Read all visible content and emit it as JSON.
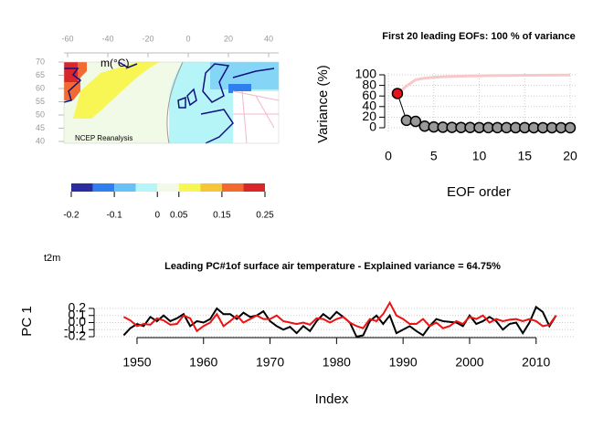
{
  "chart_data": [
    {
      "type": "map",
      "subtitle": "m(°C)",
      "annotation": "NCEP Reanalysis",
      "variable": "t2m",
      "xticks": [
        -60,
        -40,
        -20,
        0,
        20,
        40
      ],
      "yticks": [
        40,
        45,
        50,
        55,
        60,
        65,
        70
      ],
      "xlim": [
        -60,
        40
      ],
      "ylim": [
        40,
        70
      ],
      "colorbar": {
        "breaks": [
          -0.2,
          -0.15,
          -0.1,
          -0.05,
          0,
          0.05,
          0.1,
          0.15,
          0.2,
          0.25
        ],
        "colors": [
          "#2b2ca0",
          "#2f80ee",
          "#66c2f5",
          "#b5f5f8",
          "#f0fae6",
          "#f8f655",
          "#f6c636",
          "#f26a2f",
          "#d8262a"
        ],
        "ticks": [
          -0.2,
          -0.1,
          0,
          0.05,
          0.15,
          0.25
        ]
      }
    },
    {
      "type": "scatter",
      "title": "First 20 leading EOFs:  100 % of variance",
      "xlabel": "EOF order",
      "ylabel": "Variance (%)",
      "x": [
        1,
        2,
        3,
        4,
        5,
        6,
        7,
        8,
        9,
        10,
        11,
        12,
        13,
        14,
        15,
        16,
        17,
        18,
        19,
        20
      ],
      "series": [
        {
          "color": "#999999",
          "highlight": "#e8141c",
          "values": [
            64.75,
            14,
            12,
            3,
            1.5,
            1,
            0.7,
            0.5,
            0.4,
            0.3,
            0.25,
            0.2,
            0.2,
            0.15,
            0.15,
            0.1,
            0.1,
            0.1,
            0.1,
            0.05
          ]
        },
        {
          "color": "#f8c8c8",
          "values": [
            64.75,
            78.75,
            90.75,
            93.75,
            95.25,
            96.25,
            96.95,
            97.45,
            97.85,
            98.15,
            98.4,
            98.6,
            98.8,
            98.95,
            99.1,
            99.2,
            99.3,
            99.4,
            99.5,
            99.55
          ]
        }
      ],
      "xlim": [
        0,
        20
      ],
      "ylim": [
        0,
        100
      ],
      "xticks": [
        0,
        5,
        10,
        15,
        20
      ],
      "yticks": [
        0,
        20,
        40,
        60,
        80,
        100
      ],
      "grid": true
    },
    {
      "type": "line",
      "title": "Leading PC#1of surface air temperature - Explained variance = 64.75%",
      "xlabel": "Index",
      "ylabel": "PC 1",
      "x": [
        1948,
        1949,
        1950,
        1951,
        1952,
        1953,
        1954,
        1955,
        1956,
        1957,
        1958,
        1959,
        1960,
        1961,
        1962,
        1963,
        1964,
        1965,
        1966,
        1967,
        1968,
        1969,
        1970,
        1971,
        1972,
        1973,
        1974,
        1975,
        1976,
        1977,
        1978,
        1979,
        1980,
        1981,
        1982,
        1983,
        1984,
        1985,
        1986,
        1987,
        1988,
        1989,
        1990,
        1991,
        1992,
        1993,
        1994,
        1995,
        1996,
        1997,
        1998,
        1999,
        2000,
        2001,
        2002,
        2003,
        2004,
        2005,
        2006,
        2007,
        2008,
        2009,
        2010,
        2011,
        2012,
        2013
      ],
      "series": [
        {
          "color": "#000000",
          "values": [
            -0.18,
            -0.08,
            -0.02,
            -0.05,
            0.08,
            0.02,
            0.1,
            0.02,
            0.06,
            0.12,
            -0.05,
            0.02,
            0.0,
            0.05,
            0.2,
            0.12,
            0.12,
            0.05,
            0.14,
            0.08,
            0.1,
            0.16,
            0.02,
            -0.05,
            -0.1,
            -0.06,
            -0.15,
            -0.05,
            -0.12,
            0.02,
            0.12,
            0.05,
            0.15,
            0.08,
            0.0,
            -0.2,
            -0.18,
            0.02,
            0.1,
            -0.02,
            0.1,
            -0.15,
            -0.1,
            -0.05,
            -0.12,
            -0.18,
            -0.05,
            0.05,
            0.02,
            0.01,
            0.0,
            -0.05,
            0.1,
            -0.02,
            0.02,
            0.08,
            0.02,
            -0.1,
            -0.02,
            0.0,
            -0.15,
            0.0,
            0.22,
            0.15,
            -0.05,
            0.1
          ]
        },
        {
          "color": "#ee1111",
          "values": [
            0.08,
            0.03,
            -0.05,
            -0.02,
            -0.03,
            0.06,
            0.03,
            -0.03,
            -0.02,
            0.1,
            0.06,
            -0.12,
            -0.05,
            0.0,
            0.12,
            -0.05,
            0.02,
            0.1,
            0.0,
            0.05,
            0.1,
            0.05,
            0.05,
            0.1,
            0.02,
            0.0,
            -0.02,
            0.0,
            -0.03,
            0.06,
            0.05,
            0.0,
            0.05,
            0.08,
            0.0,
            -0.05,
            -0.08,
            0.05,
            0.02,
            0.12,
            0.28,
            0.1,
            0.05,
            -0.02,
            -0.02,
            0.05,
            -0.05,
            0.0,
            -0.08,
            -0.05,
            0.02,
            -0.02,
            0.08,
            0.05,
            0.1,
            0.0,
            0.05,
            0.02,
            0.04,
            0.05,
            0.02,
            0.05,
            0.02,
            -0.05,
            -0.03,
            0.1
          ]
        }
      ],
      "xlim": [
        1948,
        2013
      ],
      "ylim": [
        -0.2,
        0.2
      ],
      "xticks": [
        1950,
        1960,
        1970,
        1980,
        1990,
        2000,
        2010
      ],
      "yticks": [
        {
          "value": 0.2,
          "label": "0.2"
        },
        {
          "value": 0.1,
          "label": "0.1"
        },
        {
          "value": 0,
          "label": "0.0"
        },
        {
          "value": -0.1,
          "label": "-0.1"
        },
        {
          "value": -0.2,
          "label": "-0.2"
        }
      ],
      "grid": true
    }
  ]
}
